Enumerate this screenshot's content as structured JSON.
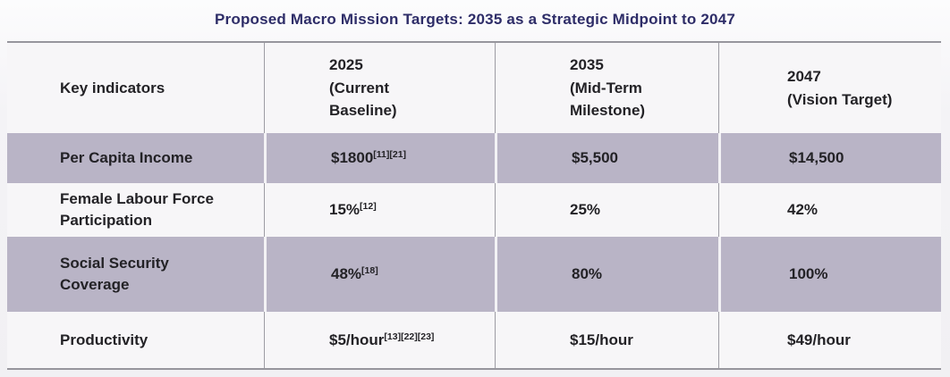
{
  "title": "Proposed Macro Mission Targets: 2035 as a Strategic Midpoint to 2047",
  "colors": {
    "title_text": "#2e2d68",
    "body_text": "#232226",
    "shaded_row": "#b9b4c6",
    "table_border": "#97969d"
  },
  "table": {
    "columns": [
      {
        "lines": [
          "Key indicators",
          "",
          ""
        ]
      },
      {
        "lines": [
          "2025",
          "(Current",
          "Baseline)"
        ]
      },
      {
        "lines": [
          "2035",
          "(Mid-Term",
          "Milestone)"
        ]
      },
      {
        "lines": [
          "2047",
          "(Vision Target)",
          ""
        ]
      }
    ],
    "rows": [
      {
        "indicator": "Per Capita Income",
        "baseline_value": "$1800",
        "baseline_refs": "[11][21]",
        "midterm": "$5,500",
        "vision": "$14,500"
      },
      {
        "indicator": "Female Labour Force Participation",
        "baseline_value": "15%",
        "baseline_refs": "[12]",
        "midterm": "25%",
        "vision": "42%"
      },
      {
        "indicator": "Social Security Coverage",
        "baseline_value": "48%",
        "baseline_refs": "[18]",
        "midterm": "80%",
        "vision": "100%"
      },
      {
        "indicator": "Productivity",
        "baseline_value": "$5/hour",
        "baseline_refs": "[13][22][23]",
        "midterm": "$15/hour",
        "vision": "$49/hour"
      }
    ]
  }
}
